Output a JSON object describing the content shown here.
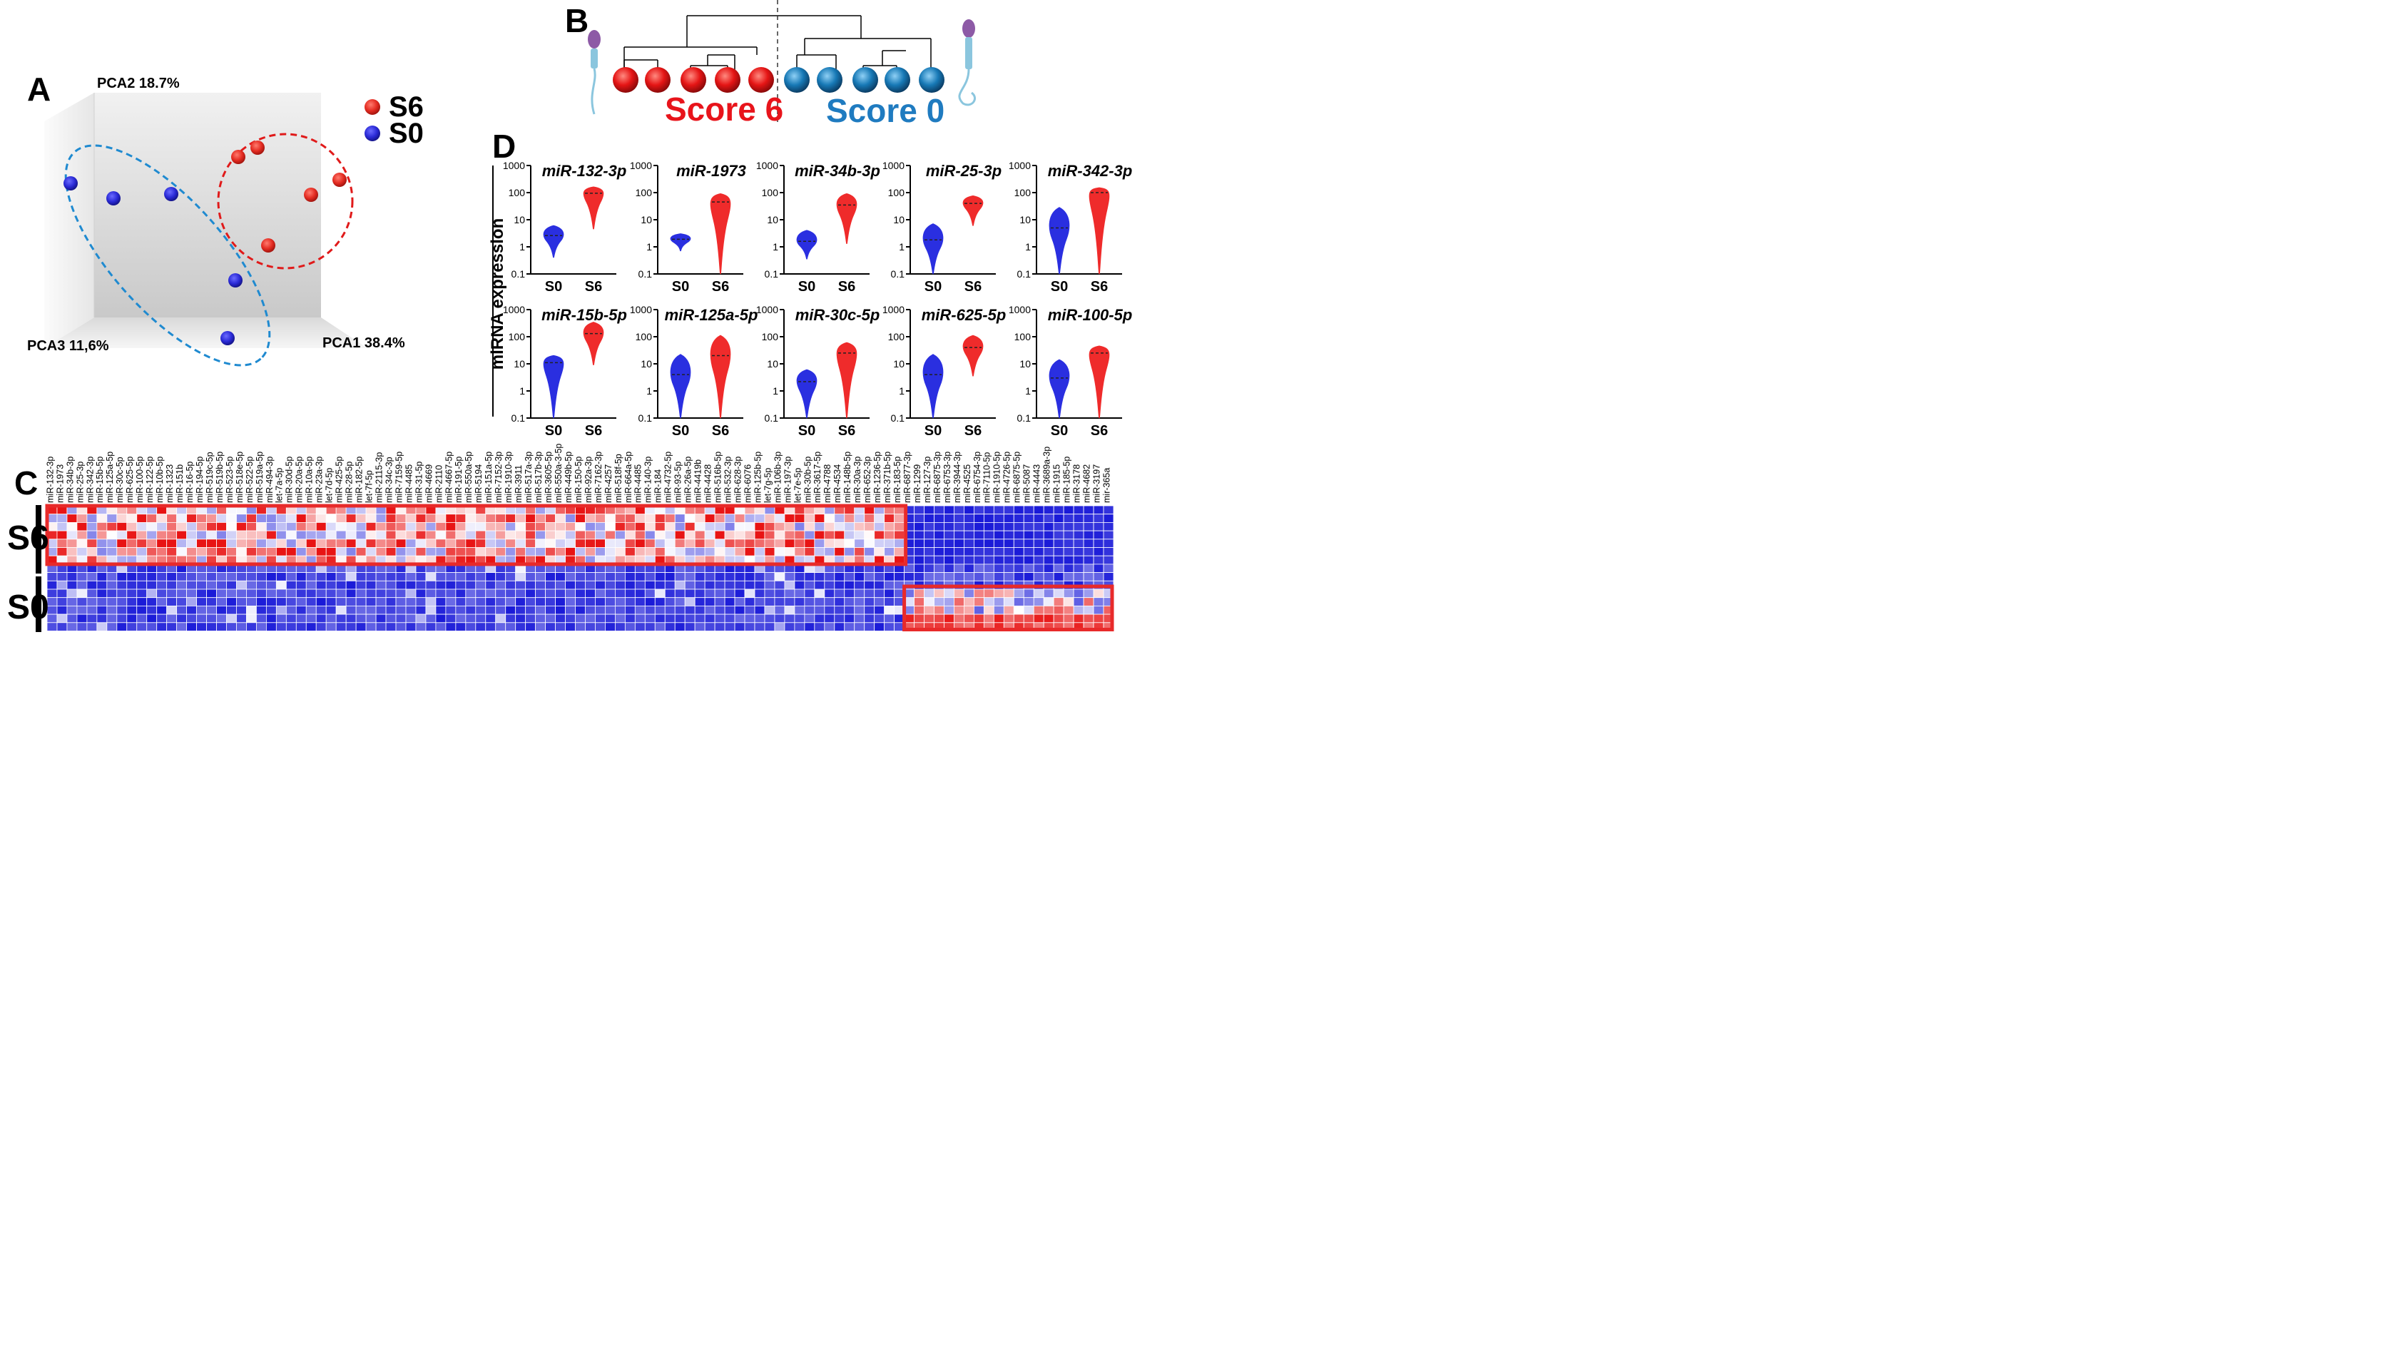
{
  "panels": {
    "a": "A",
    "b": "B",
    "c": "C",
    "d": "D"
  },
  "pca": {
    "axis_labels": {
      "pca1": "PCA1 38.4%",
      "pca2": "PCA2 18.7%",
      "pca3": "PCA3 11,6%"
    },
    "legend": [
      {
        "label": "S6",
        "color": "#f0352c"
      },
      {
        "label": "S0",
        "color": "#2d2bd8"
      }
    ]
  },
  "dendrogram": {
    "score6_label": "Score 6",
    "score0_label": "Score 0",
    "score6_color": "#e8141b",
    "score0_color": "#1f7bc0"
  },
  "violins": {
    "y_axis_label": "miRNA expression",
    "ticks": [
      "1000",
      "100",
      "10",
      "1",
      "0.1"
    ],
    "group_labels": [
      "S0",
      "S6"
    ],
    "s0_color": "#2a2fe0",
    "s6_color": "#ef2b2b"
  },
  "chart_data": [
    {
      "type": "violin",
      "scale": "log10",
      "ylim": [
        0.1,
        1000
      ],
      "ylabel": "miRNA expression",
      "categories": [
        "S0",
        "S6"
      ],
      "series": [
        {
          "name": "miR-132-3p",
          "S0": {
            "median": 2.6,
            "min": 0.4,
            "max": 6
          },
          "S6": {
            "median": 95,
            "min": 4.5,
            "max": 160
          }
        },
        {
          "name": "miR-1973",
          "S0": {
            "median": 1.9,
            "min": 0.7,
            "max": 3
          },
          "S6": {
            "median": 45,
            "min": 0.1,
            "max": 90
          }
        },
        {
          "name": "miR-34b-3p",
          "S0": {
            "median": 1.6,
            "min": 0.35,
            "max": 4
          },
          "S6": {
            "median": 35,
            "min": 1.3,
            "max": 90
          }
        },
        {
          "name": "miR-25-3p",
          "S0": {
            "median": 1.8,
            "min": 0.1,
            "max": 7
          },
          "S6": {
            "median": 40,
            "min": 6,
            "max": 75
          }
        },
        {
          "name": "miR-342-3p",
          "S0": {
            "median": 5,
            "min": 0.1,
            "max": 28
          },
          "S6": {
            "median": 100,
            "min": 0.1,
            "max": 150
          }
        },
        {
          "name": "miR-15b-5p",
          "S0": {
            "median": 11,
            "min": 0.1,
            "max": 20
          },
          "S6": {
            "median": 130,
            "min": 9,
            "max": 340
          }
        },
        {
          "name": "miR-125a-5p",
          "S0": {
            "median": 4,
            "min": 0.1,
            "max": 22
          },
          "S6": {
            "median": 20,
            "min": 0.1,
            "max": 110
          }
        },
        {
          "name": "miR-30c-5p",
          "S0": {
            "median": 2.2,
            "min": 0.1,
            "max": 6
          },
          "S6": {
            "median": 25,
            "min": 0.1,
            "max": 60
          }
        },
        {
          "name": "miR-625-5p",
          "S0": {
            "median": 4,
            "min": 0.1,
            "max": 22
          },
          "S6": {
            "median": 40,
            "min": 3.5,
            "max": 110
          }
        },
        {
          "name": "miR-100-5p",
          "S0": {
            "median": 3,
            "min": 0.1,
            "max": 14
          },
          "S6": {
            "median": 25,
            "min": 0.1,
            "max": 45
          }
        }
      ]
    },
    {
      "type": "heatmap",
      "rows": [
        "S6",
        "S0"
      ],
      "row_labels": [
        "S6",
        "S0"
      ],
      "columns": [
        "miR-132-3p",
        "miR-1973",
        "miR-34b-3p",
        "miR-25-3p",
        "miR-342-3p",
        "miR-15b-5p",
        "miR-125a-5p",
        "miR-30c-5p",
        "miR-625-5p",
        "miR-100-5p",
        "miR-122-5p",
        "miR-10b-5p",
        "miR-1323",
        "miR-151b",
        "miR-16-5p",
        "miR-194-5p",
        "miR-519c-5p",
        "miR-519b-5p",
        "miR-523-5p",
        "miR-518e-5p",
        "miR-522-5p",
        "miR-519a-5p",
        "miR-494-3p",
        "let-7a-5p",
        "miR-30d-5p",
        "miR-20a-5p",
        "miR-10a-5p",
        "miR-23a-3p",
        "let-7d-5p",
        "miR-425-5p",
        "miR-28-5p",
        "miR-182-5p",
        "let-7f-5p",
        "miR-2115-3p",
        "miR-34c-3p",
        "miR-7159-5p",
        "miR-4485",
        "miR-31-5p",
        "miR-4669",
        "miR-2110",
        "miR-4667-5p",
        "miR-191-5p",
        "miR-550a-5p",
        "miR-5194",
        "miR-151a-5p",
        "miR-7152-3p",
        "miR-1910-3p",
        "miR-3911",
        "miR-517a-3p",
        "miR-517b-3p",
        "miR-3605-5p",
        "miR-550a-3-5p",
        "miR-449b-5p",
        "miR-150-5p",
        "miR-92a-3p",
        "miR-7162-3p",
        "miR-4257",
        "miR-518f-5p",
        "miR-664a-5p",
        "miR-4485",
        "miR-140-3p",
        "miR-184",
        "miR-4732-5p",
        "miR-93-5p",
        "miR-26a-5p",
        "miR-4419b",
        "miR-4428",
        "miR-516b-5p",
        "miR-532-3p",
        "miR-628-3p",
        "miR-6076",
        "miR-125b-5p",
        "let-7g-5p",
        "miR-106b-3p",
        "miR-197-3p",
        "let-7e-5p",
        "miR-30b-5p",
        "miR-3617-5p",
        "miR-4788",
        "miR-4534",
        "miR-148b-5p",
        "miR-30a-3p",
        "miR-652-3p",
        "miR-1236-5p",
        "miR-371b-5p",
        "miR-183-5p",
        "miR-6877-3p",
        "miR-1299",
        "miR-127-3p",
        "miR-6875-3p",
        "miR-6753-3p",
        "miR-3944-3p",
        "miR-4525",
        "miR-6754-3p",
        "miR-7110-5p",
        "miR-1910-5p",
        "miR-4726-5p",
        "miR-6875-5p",
        "miR-5087",
        "miR-4443",
        "miR-3689a-3p",
        "miR-1915",
        "miR-185-5p",
        "miR-3178",
        "miR-4682",
        "miR-3197",
        "mir-365a"
      ],
      "color_low": "#1a1ad8",
      "color_mid": "#ffffff",
      "color_high": "#e81414",
      "highlight_blocks": [
        "S6 up-regulated cluster",
        "S0 up-regulated cluster"
      ]
    }
  ]
}
